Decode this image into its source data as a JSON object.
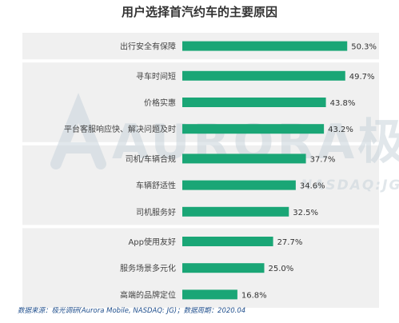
{
  "chart_data": {
    "type": "bar",
    "orientation": "horizontal",
    "title": "用户选择首汽约车的主要原因",
    "categories": [
      "出行安全有保障",
      "寻车时间短",
      "价格实惠",
      "平台客服响应快、解决问题及时",
      "司机/车辆合规",
      "车辆舒适性",
      "司机服务好",
      "App使用友好",
      "服务场景多元化",
      "高端的品牌定位"
    ],
    "values": [
      50.3,
      49.7,
      43.8,
      43.2,
      37.7,
      34.6,
      32.5,
      27.7,
      25.0,
      16.8
    ],
    "value_labels": [
      "50.3%",
      "49.7%",
      "43.8%",
      "43.2%",
      "37.7%",
      "34.6%",
      "32.5%",
      "27.7%",
      "25.0%",
      "16.8%"
    ],
    "groups": [
      [
        0
      ],
      [
        1,
        2,
        3
      ],
      [
        4,
        5,
        6
      ],
      [
        7,
        8,
        9
      ]
    ],
    "xlim": [
      0,
      60
    ],
    "bar_color": "#1aa676",
    "group_background_color": "#f0f0f0",
    "grid": false,
    "legend": "none"
  },
  "watermark": {
    "brand": "AURORA极光",
    "sub": "NASDAQ:JG",
    "color": "#c9d4dc"
  },
  "footer": {
    "source_label": "数据来源：",
    "source_text": "极光调研(Aurora Mobile, NASDAQ: JG)；",
    "period_label": "数据周期：",
    "period_text": "2020.04"
  }
}
